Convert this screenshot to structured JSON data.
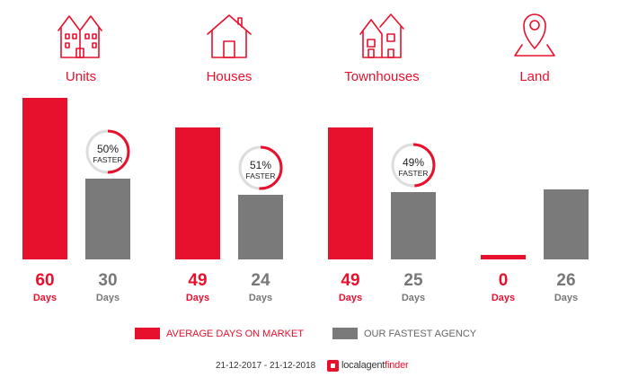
{
  "colors": {
    "accent": "#e8112d",
    "agency": "#7a7a7a",
    "label_gray": "#777777"
  },
  "categories": [
    {
      "label": "Units",
      "icon": "units-icon"
    },
    {
      "label": "Houses",
      "icon": "house-icon"
    },
    {
      "label": "Townhouses",
      "icon": "townhouses-icon"
    },
    {
      "label": "Land",
      "icon": "land-pin-icon"
    }
  ],
  "chart_data": {
    "type": "bar",
    "categories": [
      "Units",
      "Houses",
      "Townhouses",
      "Land"
    ],
    "series": [
      {
        "name": "AVERAGE DAYS ON MARKET",
        "values": [
          60,
          49,
          49,
          0
        ]
      },
      {
        "name": "OUR FASTEST AGENCY",
        "values": [
          30,
          24,
          25,
          26
        ]
      }
    ],
    "value_unit": "Days",
    "faster_badges": [
      {
        "category": "Units",
        "percent": 50,
        "text": "50%",
        "sub": "FASTER"
      },
      {
        "category": "Houses",
        "percent": 51,
        "text": "51%",
        "sub": "FASTER"
      },
      {
        "category": "Townhouses",
        "percent": 49,
        "text": "49%",
        "sub": "FASTER"
      }
    ],
    "ylim": [
      0,
      60
    ],
    "grid": false,
    "legend_placement": "bottom"
  },
  "footer": {
    "date_range": "21-12-2017 - 21-12-2018",
    "brand_prefix": "localagent",
    "brand_suffix": "finder"
  }
}
